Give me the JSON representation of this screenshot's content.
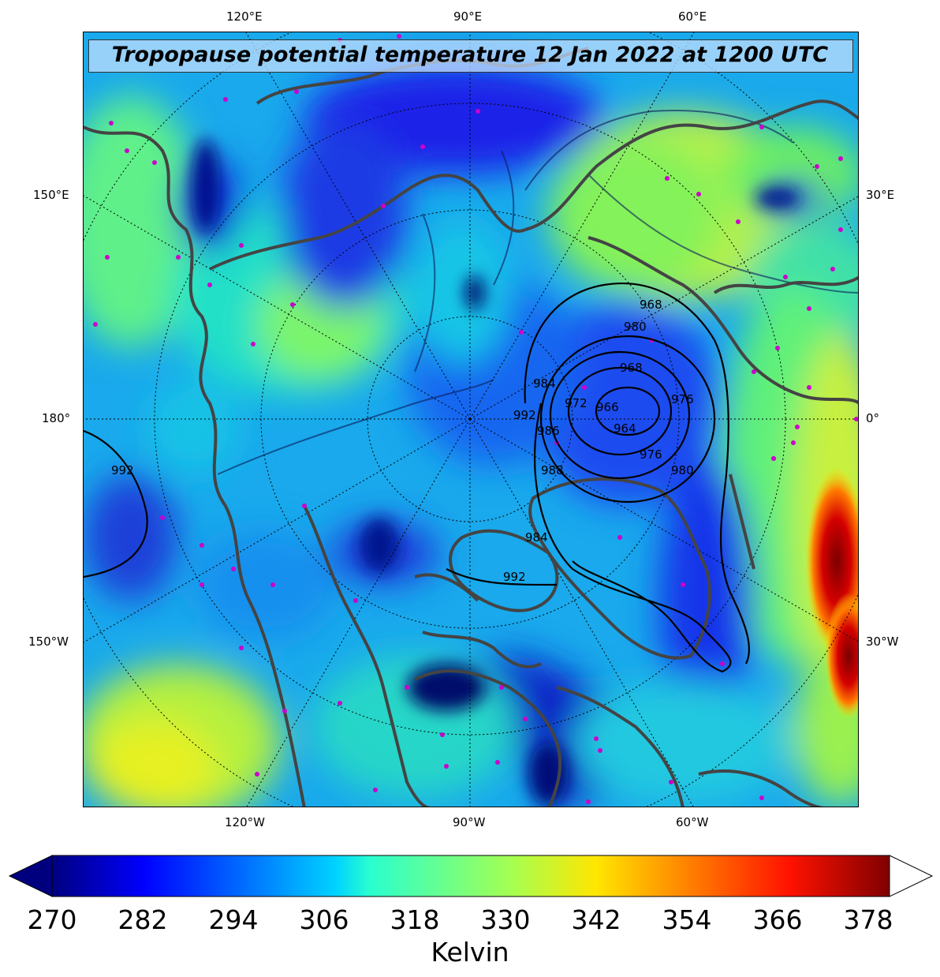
{
  "title": "Tropopause potential temperature 12 Jan 2022 at 1200 UTC",
  "top_longitude_labels": [
    "120°E",
    "90°E",
    "60°E"
  ],
  "bottom_longitude_labels": [
    "120°W",
    "90°W",
    "60°W"
  ],
  "left_longitude_labels": [
    "150°E",
    "180°",
    "150°W"
  ],
  "right_longitude_labels": [
    "30°E",
    "0°",
    "30°W"
  ],
  "colorbar": {
    "ticks": [
      "270",
      "282",
      "294",
      "306",
      "318",
      "330",
      "342",
      "354",
      "366",
      "378"
    ],
    "unit_label": "Kelvin",
    "min": 270,
    "max": 381,
    "extend": "both",
    "colormap": "jet"
  },
  "pressure_contour_labels": [
    "968",
    "980",
    "968",
    "964",
    "966",
    "972",
    "984",
    "992",
    "976",
    "976",
    "980",
    "986",
    "988",
    "984",
    "992",
    "992"
  ],
  "colors": {
    "coastline": "#444444",
    "station_marker": "#cc00cc",
    "pressure_contour": "#000000"
  }
}
